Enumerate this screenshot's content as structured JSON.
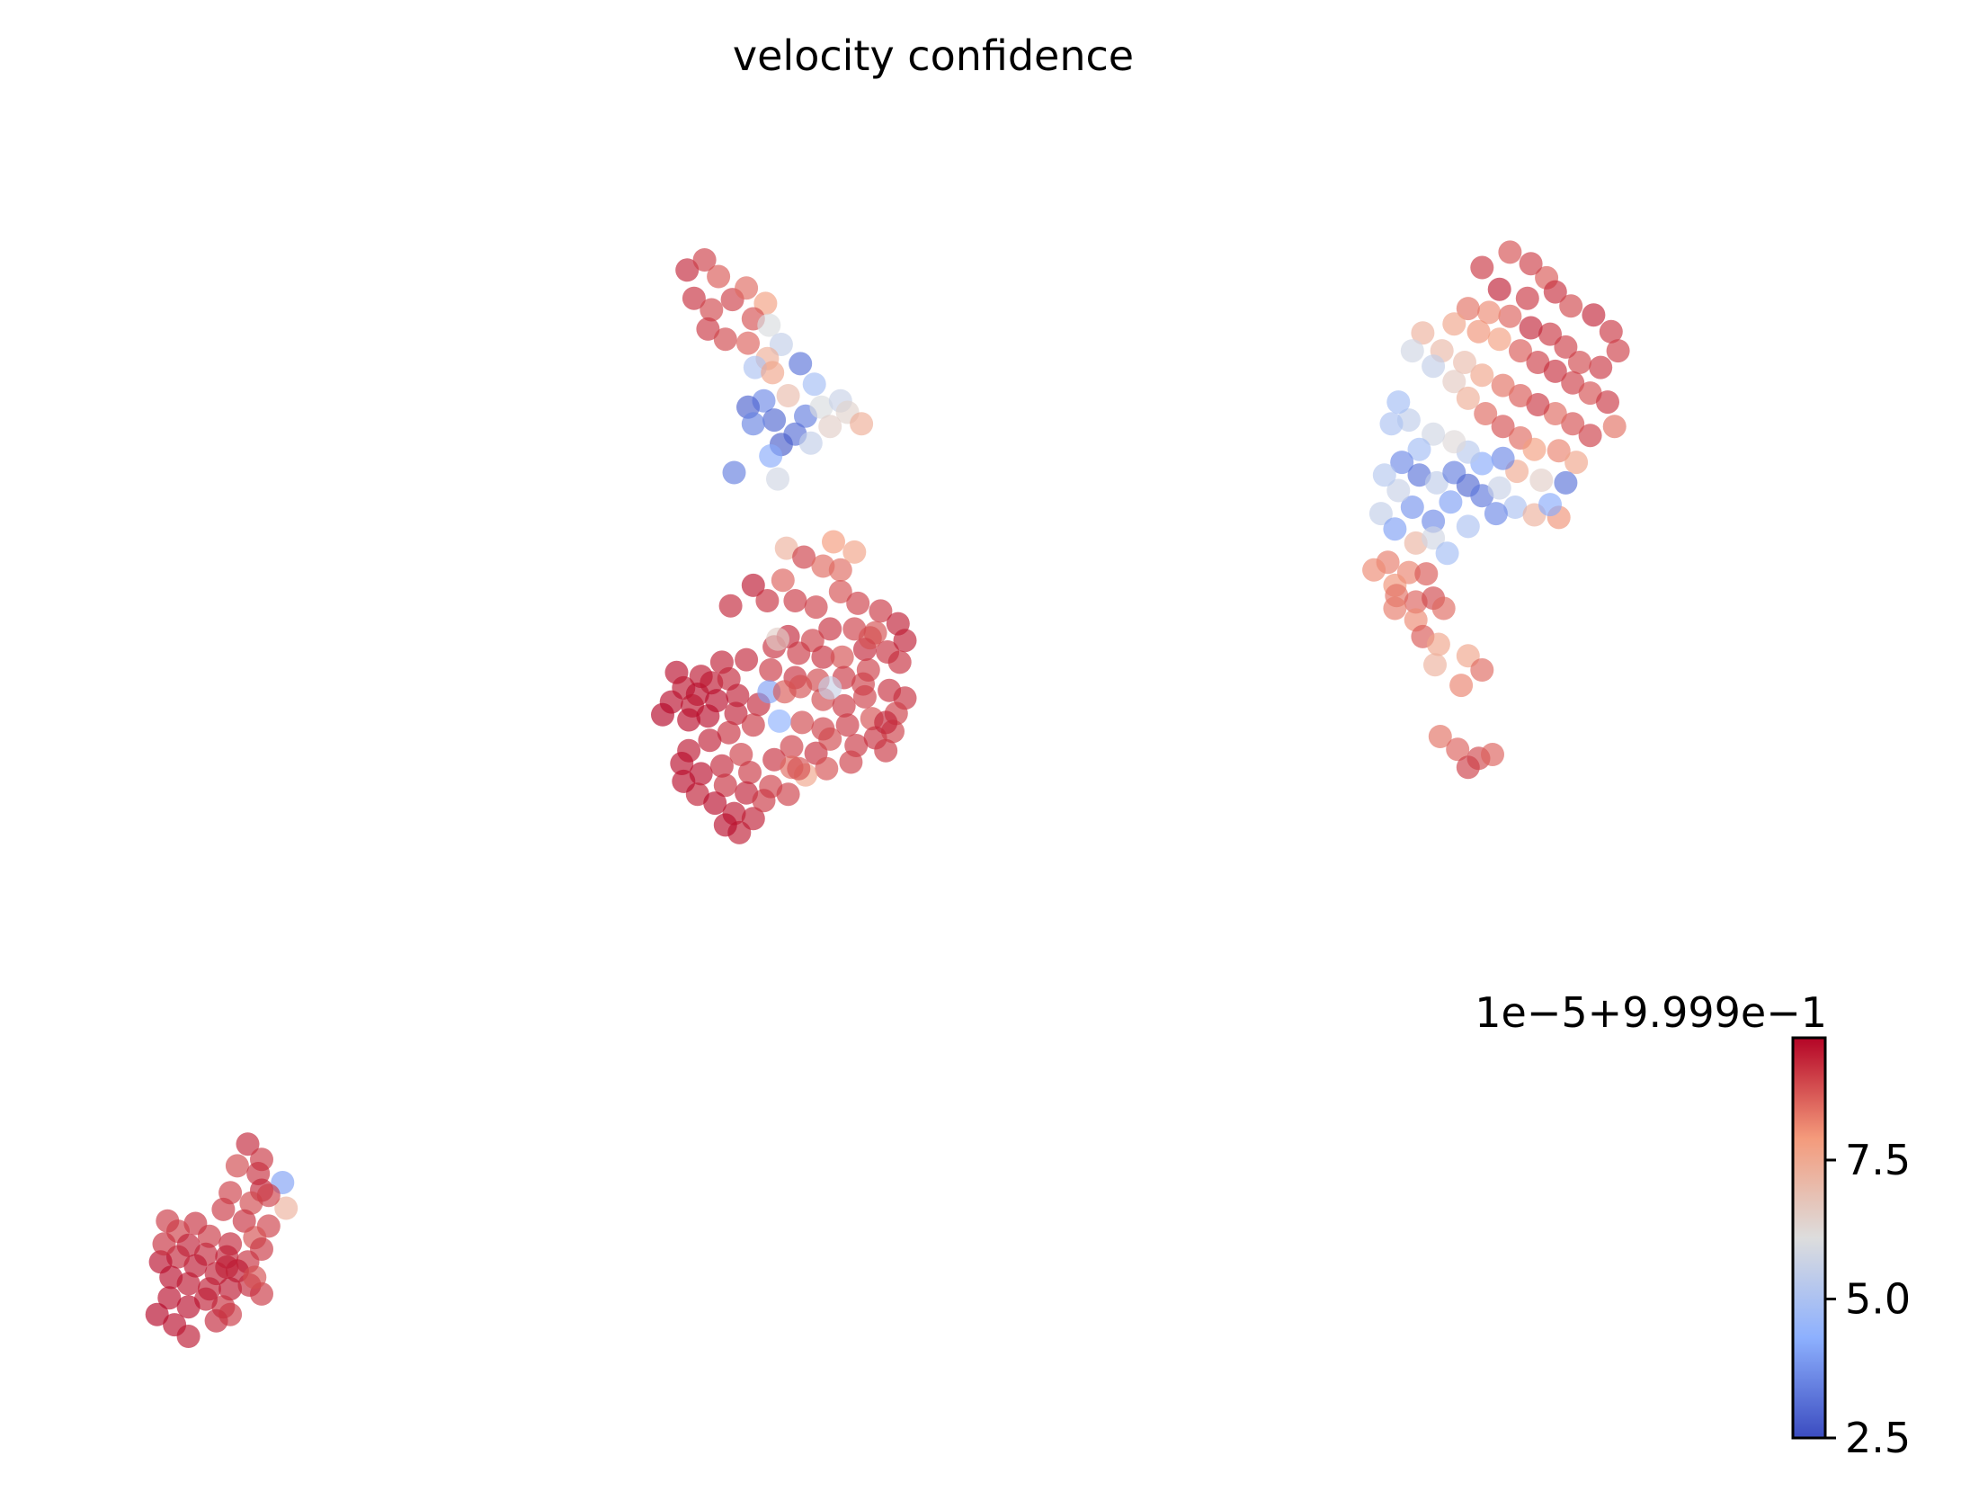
{
  "chart_data": {
    "type": "scatter",
    "title": "velocity confidence",
    "xlabel": "",
    "ylabel": "",
    "axes_visible": false,
    "grid": false,
    "xlim": [
      0,
      100
    ],
    "ylim": [
      0,
      100
    ],
    "colormap": {
      "name": "coolwarm",
      "stops": [
        "#3b4cc0",
        "#8db0fe",
        "#dddddd",
        "#f49a7b",
        "#b40426"
      ]
    },
    "colorbar": {
      "offset_label": "1e−5+9.999e−1",
      "range": [
        2.5,
        9.7
      ],
      "ticks": [
        {
          "value": 2.5,
          "label": "2.5"
        },
        {
          "value": 5.0,
          "label": "5.0"
        },
        {
          "value": 7.5,
          "label": "7.5"
        }
      ],
      "placement": "right"
    },
    "points": [
      [
        35.8,
        89.8,
        9.3
      ],
      [
        36.8,
        90.6,
        9.0
      ],
      [
        37.6,
        89.3,
        8.7
      ],
      [
        36.2,
        87.6,
        9.2
      ],
      [
        37.2,
        86.7,
        8.9
      ],
      [
        38.4,
        87.5,
        9.0
      ],
      [
        39.2,
        88.4,
        8.5
      ],
      [
        40.3,
        87.2,
        7.8
      ],
      [
        39.6,
        86.0,
        8.8
      ],
      [
        37.0,
        85.2,
        9.1
      ],
      [
        38.0,
        84.4,
        8.9
      ],
      [
        39.3,
        84.1,
        8.6
      ],
      [
        40.5,
        85.5,
        6.0
      ],
      [
        41.2,
        84.0,
        5.5
      ],
      [
        40.4,
        82.9,
        7.4
      ],
      [
        39.7,
        82.2,
        5.0
      ],
      [
        40.7,
        81.8,
        7.6
      ],
      [
        42.3,
        82.5,
        3.2
      ],
      [
        43.1,
        80.9,
        4.8
      ],
      [
        41.6,
        80.0,
        7.0
      ],
      [
        40.2,
        79.6,
        3.6
      ],
      [
        39.3,
        79.1,
        2.9
      ],
      [
        40.8,
        78.1,
        3.0
      ],
      [
        42.6,
        78.4,
        3.4
      ],
      [
        43.5,
        79.1,
        6.0
      ],
      [
        44.6,
        79.6,
        5.6
      ],
      [
        45.0,
        78.7,
        6.4
      ],
      [
        45.8,
        77.8,
        7.4
      ],
      [
        44.0,
        77.6,
        6.5
      ],
      [
        42.0,
        77.0,
        3.1
      ],
      [
        41.2,
        76.2,
        2.8
      ],
      [
        40.6,
        75.3,
        4.2
      ],
      [
        42.9,
        76.3,
        5.5
      ],
      [
        41.0,
        73.5,
        5.8
      ],
      [
        38.5,
        74.0,
        3.4
      ],
      [
        39.6,
        77.8,
        3.5
      ],
      [
        41.5,
        68.1,
        7.3
      ],
      [
        42.5,
        67.4,
        9.0
      ],
      [
        43.6,
        66.7,
        8.5
      ],
      [
        44.6,
        66.4,
        8.5
      ],
      [
        45.4,
        67.8,
        7.7
      ],
      [
        44.2,
        68.6,
        7.9
      ],
      [
        41.3,
        65.6,
        8.6
      ],
      [
        39.6,
        65.2,
        9.5
      ],
      [
        38.3,
        63.6,
        9.3
      ],
      [
        40.4,
        64.0,
        9.2
      ],
      [
        42.0,
        64.0,
        9.1
      ],
      [
        43.2,
        63.5,
        9.0
      ],
      [
        44.6,
        64.7,
        8.8
      ],
      [
        45.6,
        63.8,
        9.0
      ],
      [
        46.9,
        63.2,
        9.1
      ],
      [
        47.9,
        62.2,
        9.4
      ],
      [
        46.6,
        61.5,
        8.8
      ],
      [
        45.4,
        61.8,
        9.0
      ],
      [
        44.0,
        61.8,
        9.2
      ],
      [
        43.0,
        60.9,
        9.0
      ],
      [
        41.6,
        61.2,
        9.3
      ],
      [
        40.8,
        60.4,
        9.2
      ],
      [
        42.2,
        59.9,
        9.1
      ],
      [
        43.6,
        59.6,
        9.2
      ],
      [
        44.7,
        59.6,
        8.8
      ],
      [
        46.0,
        60.2,
        9.3
      ],
      [
        47.3,
        60.0,
        9.2
      ],
      [
        48.3,
        60.9,
        9.4
      ],
      [
        48.0,
        59.2,
        9.2
      ],
      [
        46.2,
        58.6,
        9.0
      ],
      [
        44.8,
        58.0,
        9.1
      ],
      [
        43.3,
        57.8,
        8.9
      ],
      [
        42.0,
        58.0,
        9.2
      ],
      [
        40.6,
        58.6,
        9.1
      ],
      [
        39.2,
        59.4,
        9.3
      ],
      [
        37.8,
        59.2,
        9.4
      ],
      [
        36.6,
        58.1,
        9.5
      ],
      [
        35.2,
        58.4,
        9.6
      ],
      [
        35.6,
        57.2,
        9.5
      ],
      [
        36.4,
        56.7,
        9.6
      ],
      [
        37.2,
        57.6,
        9.5
      ],
      [
        38.2,
        57.9,
        9.3
      ],
      [
        38.7,
        56.6,
        9.4
      ],
      [
        37.5,
        56.2,
        9.6
      ],
      [
        36.1,
        55.8,
        9.5
      ],
      [
        34.9,
        56.1,
        9.6
      ],
      [
        34.4,
        55.1,
        9.7
      ],
      [
        35.9,
        54.7,
        9.6
      ],
      [
        37.0,
        55.0,
        9.6
      ],
      [
        38.6,
        55.2,
        9.4
      ],
      [
        39.9,
        55.9,
        9.3
      ],
      [
        40.5,
        56.9,
        4.0
      ],
      [
        41.4,
        56.9,
        8.7
      ],
      [
        42.3,
        57.3,
        8.8
      ],
      [
        43.6,
        56.3,
        8.9
      ],
      [
        44.8,
        55.8,
        9.1
      ],
      [
        46.0,
        56.5,
        9.0
      ],
      [
        47.4,
        57.0,
        9.2
      ],
      [
        48.3,
        56.4,
        9.2
      ],
      [
        47.8,
        55.2,
        9.0
      ],
      [
        46.4,
        54.8,
        8.8
      ],
      [
        45.0,
        54.3,
        9.1
      ],
      [
        43.6,
        54.0,
        9.0
      ],
      [
        42.4,
        54.5,
        8.9
      ],
      [
        41.1,
        54.6,
        4.3
      ],
      [
        39.6,
        54.3,
        9.1
      ],
      [
        38.2,
        53.7,
        9.2
      ],
      [
        37.1,
        53.1,
        9.4
      ],
      [
        35.9,
        52.3,
        9.5
      ],
      [
        35.5,
        51.3,
        9.6
      ],
      [
        36.6,
        50.5,
        9.6
      ],
      [
        37.8,
        51.1,
        9.3
      ],
      [
        38.9,
        52.0,
        9.0
      ],
      [
        39.4,
        50.6,
        9.1
      ],
      [
        40.8,
        51.6,
        9.2
      ],
      [
        41.8,
        52.6,
        9.0
      ],
      [
        43.2,
        52.1,
        9.2
      ],
      [
        44.0,
        53.2,
        8.9
      ],
      [
        45.5,
        52.7,
        9.1
      ],
      [
        46.6,
        53.3,
        9.2
      ],
      [
        47.6,
        53.8,
        9.0
      ],
      [
        47.2,
        52.3,
        9.1
      ],
      [
        45.2,
        51.4,
        9.0
      ],
      [
        43.8,
        50.9,
        8.8
      ],
      [
        42.6,
        50.4,
        7.6
      ],
      [
        41.8,
        51.0,
        8.5
      ],
      [
        40.6,
        49.5,
        9.0
      ],
      [
        39.2,
        49.0,
        9.4
      ],
      [
        38.0,
        49.6,
        9.2
      ],
      [
        36.4,
        48.9,
        9.4
      ],
      [
        35.6,
        49.9,
        9.6
      ],
      [
        37.4,
        48.2,
        9.6
      ],
      [
        38.5,
        47.4,
        9.5
      ],
      [
        39.6,
        47.0,
        9.4
      ],
      [
        38.8,
        45.9,
        9.4
      ],
      [
        38.0,
        46.5,
        9.6
      ],
      [
        40.2,
        48.4,
        9.1
      ],
      [
        41.6,
        48.9,
        9.0
      ],
      [
        42.2,
        50.9,
        8.8
      ],
      [
        47.2,
        54.5,
        9.3
      ],
      [
        45.9,
        57.5,
        9.0
      ],
      [
        46.3,
        61.1,
        8.8
      ],
      [
        41.0,
        61.0,
        6.5
      ],
      [
        44.0,
        57.2,
        5.6
      ],
      [
        85.1,
        89.2,
        8.7
      ],
      [
        84.2,
        90.3,
        9.0
      ],
      [
        83.0,
        91.2,
        8.8
      ],
      [
        81.4,
        90.0,
        9.1
      ],
      [
        82.4,
        88.3,
        9.4
      ],
      [
        84.0,
        87.6,
        9.1
      ],
      [
        85.6,
        88.1,
        9.2
      ],
      [
        86.5,
        87.0,
        8.9
      ],
      [
        87.8,
        86.3,
        9.3
      ],
      [
        88.8,
        85.0,
        9.1
      ],
      [
        89.2,
        83.5,
        9.0
      ],
      [
        88.2,
        82.2,
        9.1
      ],
      [
        87.0,
        82.6,
        8.9
      ],
      [
        86.2,
        83.8,
        9.0
      ],
      [
        85.3,
        84.8,
        9.1
      ],
      [
        84.2,
        85.3,
        9.3
      ],
      [
        83.0,
        86.2,
        8.6
      ],
      [
        81.8,
        86.5,
        8.1
      ],
      [
        80.6,
        86.8,
        8.4
      ],
      [
        79.8,
        85.6,
        7.6
      ],
      [
        81.2,
        85.0,
        8.0
      ],
      [
        82.4,
        84.4,
        7.8
      ],
      [
        83.6,
        83.5,
        8.7
      ],
      [
        84.6,
        82.6,
        9.0
      ],
      [
        85.6,
        81.9,
        9.2
      ],
      [
        86.6,
        81.0,
        9.0
      ],
      [
        87.6,
        80.2,
        8.8
      ],
      [
        88.6,
        79.5,
        9.1
      ],
      [
        89.0,
        77.6,
        8.4
      ],
      [
        87.6,
        76.9,
        9.0
      ],
      [
        86.6,
        77.8,
        8.8
      ],
      [
        85.6,
        78.6,
        8.5
      ],
      [
        84.6,
        79.3,
        9.1
      ],
      [
        83.6,
        80.0,
        8.7
      ],
      [
        82.6,
        80.8,
        8.4
      ],
      [
        81.4,
        81.6,
        7.6
      ],
      [
        80.4,
        82.6,
        7.0
      ],
      [
        79.1,
        83.5,
        7.1
      ],
      [
        78.0,
        84.9,
        7.3
      ],
      [
        77.4,
        83.5,
        5.8
      ],
      [
        78.6,
        82.3,
        5.5
      ],
      [
        79.8,
        81.1,
        6.6
      ],
      [
        80.6,
        79.8,
        7.4
      ],
      [
        81.6,
        78.6,
        8.5
      ],
      [
        82.6,
        77.6,
        8.8
      ],
      [
        83.6,
        76.7,
        8.5
      ],
      [
        84.4,
        75.8,
        7.8
      ],
      [
        85.8,
        75.7,
        8.2
      ],
      [
        86.8,
        74.8,
        7.6
      ],
      [
        86.2,
        73.2,
        3.2
      ],
      [
        84.8,
        73.4,
        6.5
      ],
      [
        83.4,
        74.1,
        7.5
      ],
      [
        82.6,
        75.1,
        3.6
      ],
      [
        81.4,
        74.7,
        4.2
      ],
      [
        80.6,
        75.6,
        5.3
      ],
      [
        79.8,
        76.4,
        6.2
      ],
      [
        78.6,
        77.0,
        5.8
      ],
      [
        77.2,
        78.1,
        5.4
      ],
      [
        76.6,
        79.5,
        4.8
      ],
      [
        76.2,
        77.8,
        5.0
      ],
      [
        77.8,
        75.8,
        4.8
      ],
      [
        76.8,
        74.8,
        3.6
      ],
      [
        77.8,
        73.8,
        3.2
      ],
      [
        78.8,
        73.2,
        5.4
      ],
      [
        79.8,
        74.0,
        3.4
      ],
      [
        80.6,
        73.0,
        3.0
      ],
      [
        79.6,
        71.7,
        4.0
      ],
      [
        81.4,
        72.2,
        3.3
      ],
      [
        82.4,
        72.8,
        5.6
      ],
      [
        83.3,
        71.3,
        5.0
      ],
      [
        84.4,
        70.7,
        7.3
      ],
      [
        85.8,
        70.5,
        8.0
      ],
      [
        85.3,
        71.5,
        4.2
      ],
      [
        82.2,
        70.8,
        3.6
      ],
      [
        80.6,
        69.8,
        5.0
      ],
      [
        78.6,
        70.2,
        3.6
      ],
      [
        77.4,
        71.3,
        3.8
      ],
      [
        76.6,
        72.6,
        5.6
      ],
      [
        75.8,
        73.8,
        5.2
      ],
      [
        75.6,
        70.8,
        5.5
      ],
      [
        76.4,
        69.6,
        4.0
      ],
      [
        77.6,
        68.5,
        7.2
      ],
      [
        78.6,
        68.9,
        5.8
      ],
      [
        79.4,
        67.7,
        4.8
      ],
      [
        76.0,
        67.0,
        8.3
      ],
      [
        77.2,
        66.2,
        8.2
      ],
      [
        78.2,
        66.1,
        8.7
      ],
      [
        76.4,
        65.2,
        8.0
      ],
      [
        75.2,
        66.4,
        8.1
      ],
      [
        76.5,
        64.4,
        8.4
      ],
      [
        77.6,
        63.9,
        8.6
      ],
      [
        78.6,
        64.2,
        8.9
      ],
      [
        79.2,
        63.4,
        8.5
      ],
      [
        77.6,
        62.5,
        8.1
      ],
      [
        76.4,
        63.4,
        8.3
      ],
      [
        78.0,
        61.2,
        8.7
      ],
      [
        78.9,
        60.6,
        7.6
      ],
      [
        78.7,
        59.0,
        7.3
      ],
      [
        80.6,
        59.7,
        7.6
      ],
      [
        81.4,
        58.6,
        8.5
      ],
      [
        80.2,
        57.4,
        8.2
      ],
      [
        79.0,
        53.4,
        8.4
      ],
      [
        80.0,
        52.4,
        8.6
      ],
      [
        81.2,
        51.7,
        8.9
      ],
      [
        82.0,
        52.0,
        8.6
      ],
      [
        80.6,
        51.0,
        9.0
      ],
      [
        10.6,
        21.6,
        9.3
      ],
      [
        11.4,
        20.4,
        9.1
      ],
      [
        10.0,
        19.9,
        8.9
      ],
      [
        11.2,
        19.3,
        9.2
      ],
      [
        12.6,
        18.6,
        4.0
      ],
      [
        11.4,
        18.0,
        9.3
      ],
      [
        10.8,
        17.0,
        8.9
      ],
      [
        9.6,
        17.8,
        9.0
      ],
      [
        9.2,
        16.5,
        9.1
      ],
      [
        10.4,
        15.6,
        9.2
      ],
      [
        12.8,
        16.6,
        7.3
      ],
      [
        11.8,
        15.2,
        9.0
      ],
      [
        11.0,
        14.3,
        8.8
      ],
      [
        9.6,
        13.8,
        9.3
      ],
      [
        8.4,
        14.4,
        9.1
      ],
      [
        7.6,
        15.4,
        9.2
      ],
      [
        6.6,
        14.8,
        9.0
      ],
      [
        7.2,
        13.7,
        9.4
      ],
      [
        8.2,
        13.0,
        9.3
      ],
      [
        9.4,
        12.8,
        9.4
      ],
      [
        10.6,
        12.4,
        9.2
      ],
      [
        11.4,
        13.4,
        9.1
      ],
      [
        10.0,
        11.7,
        9.5
      ],
      [
        8.8,
        11.5,
        9.4
      ],
      [
        7.6,
        12.1,
        9.5
      ],
      [
        6.6,
        12.8,
        9.3
      ],
      [
        5.6,
        12.4,
        9.6
      ],
      [
        6.2,
        11.2,
        9.6
      ],
      [
        7.2,
        10.7,
        9.5
      ],
      [
        8.4,
        10.3,
        9.4
      ],
      [
        9.6,
        10.3,
        9.5
      ],
      [
        10.7,
        10.6,
        9.3
      ],
      [
        11.4,
        9.9,
        9.1
      ],
      [
        11.0,
        11.2,
        8.8
      ],
      [
        9.2,
        8.9,
        9.2
      ],
      [
        8.2,
        9.5,
        9.4
      ],
      [
        7.2,
        8.9,
        9.6
      ],
      [
        6.1,
        9.6,
        9.6
      ],
      [
        5.4,
        8.3,
        9.7
      ],
      [
        6.4,
        7.5,
        9.6
      ],
      [
        7.2,
        6.6,
        9.5
      ],
      [
        8.8,
        7.8,
        9.3
      ],
      [
        9.6,
        8.3,
        9.1
      ],
      [
        6.0,
        15.6,
        9.1
      ],
      [
        5.8,
        13.8,
        9.2
      ],
      [
        11.8,
        17.6,
        9.0
      ],
      [
        9.4,
        12.0,
        9.4
      ]
    ]
  }
}
